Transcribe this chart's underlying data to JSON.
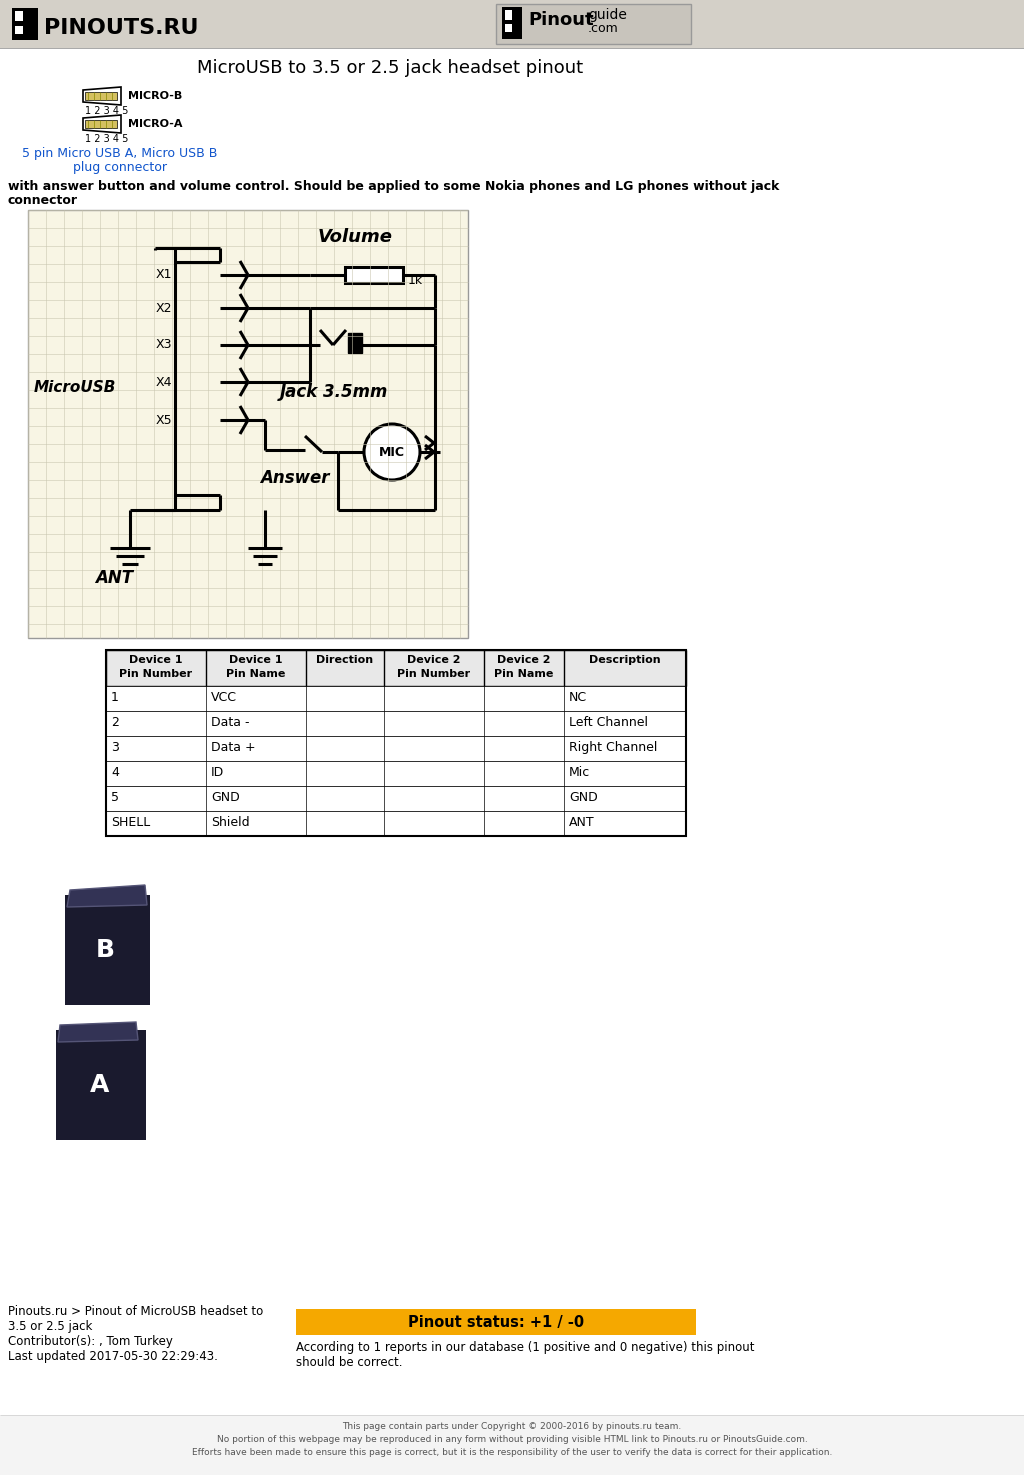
{
  "title": "MicroUSB to 3.5 or 2.5 jack headset pinout",
  "page_bg": "#ffffff",
  "header_bg": "#d4d0c8",
  "logo_text": "PINOUTS.RU",
  "micro_b_label": "MICRO-B",
  "micro_a_label": "MICRO-A",
  "connector_link_line1": "5 pin Micro USB A, Micro USB B",
  "connector_link_line2": "plug connector",
  "desc_line1": "with answer button and volume control. Should be applied to some Nokia phones and LG phones without jack",
  "desc_line2": "connector",
  "table_headers": [
    "Device 1\nPin Number",
    "Device 1\nPin Name",
    "Direction",
    "Device 2\nPin Number",
    "Device 2\nPin Name",
    "Description"
  ],
  "table_rows": [
    [
      "1",
      "VCC",
      "",
      "",
      "",
      "NC"
    ],
    [
      "2",
      "Data -",
      "",
      "",
      "",
      "Left Channel"
    ],
    [
      "3",
      "Data +",
      "",
      "",
      "",
      "Right Channel"
    ],
    [
      "4",
      "ID",
      "",
      "",
      "",
      "Mic"
    ],
    [
      "5",
      "GND",
      "",
      "",
      "",
      "GND"
    ],
    [
      "SHELL",
      "Shield",
      "",
      "",
      "",
      "ANT"
    ]
  ],
  "footer_left_lines": [
    "Pinouts.ru > Pinout of MicroUSB headset to",
    "3.5 or 2.5 jack",
    "Contributor(s): , Tom Turkey",
    "Last updated 2017-05-30 22:29:43."
  ],
  "footer_status_text": "Pinout status: +1 / -0",
  "footer_report_line1": "According to 1 reports in our database (1 positive and 0 negative) this pinout",
  "footer_report_line2": "should be correct.",
  "footer_copyright_lines": [
    "This page contain parts under Copyright © 2000-2016 by pinouts.ru team.",
    "No portion of this webpage may be reproduced in any form without providing visible HTML link to Pinouts.ru or PinoutsGuide.com.",
    "Efforts have been made to ensure this page is correct, but it is the responsibility of the user to verify the data is correct for their application."
  ]
}
